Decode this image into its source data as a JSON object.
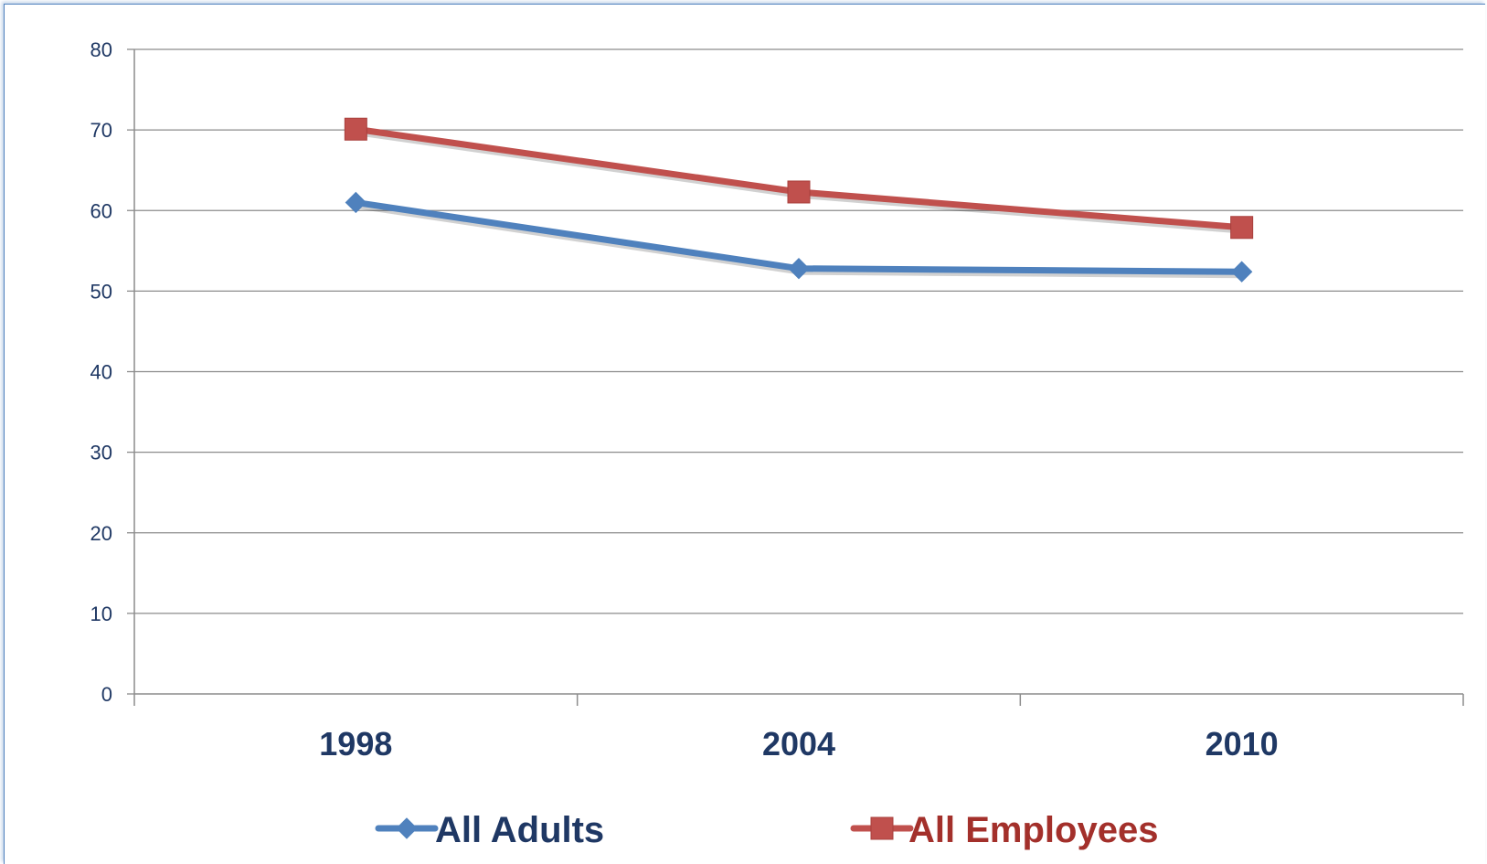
{
  "chart_data": {
    "type": "line",
    "title": "",
    "xlabel": "",
    "ylabel": "",
    "categories": [
      "1998",
      "2004",
      "2010"
    ],
    "ylim": [
      0,
      80
    ],
    "yticks": [
      "0",
      "10",
      "20",
      "30",
      "40",
      "50",
      "60",
      "70",
      "80"
    ],
    "grid": true,
    "legend_position": "bottom",
    "series": [
      {
        "name": "All Adults",
        "values": [
          61,
          52.8,
          52.4
        ],
        "color": "#4f81bd",
        "marker": "diamond"
      },
      {
        "name": "All Employees",
        "values": [
          70.1,
          62.3,
          57.9
        ],
        "color": "#c0504d",
        "marker": "square"
      }
    ]
  }
}
